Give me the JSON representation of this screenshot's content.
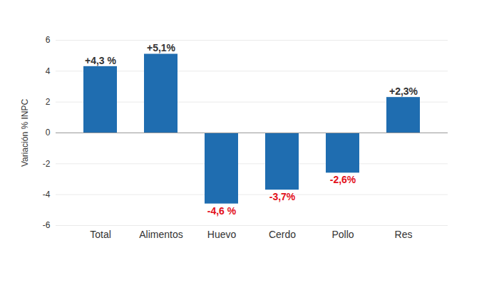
{
  "chart_data": {
    "type": "bar",
    "y_label": "Variación % INPC",
    "categories": [
      "Total",
      "Alimentos",
      "Huevo",
      "Cerdo",
      "Pollo",
      "Res"
    ],
    "values": [
      4.3,
      5.1,
      -4.6,
      -3.7,
      -2.6,
      2.3
    ],
    "value_labels": [
      "+4,3 %",
      "+5,1%",
      "-4,6 %",
      "-3,7%",
      "-2,6%",
      "+2,3%"
    ],
    "color": "#1f6db0",
    "ylim": [
      -6,
      6
    ],
    "yticks": [
      -6,
      -4,
      -2,
      0,
      2,
      4,
      6
    ],
    "grid": true,
    "data_labels": true
  }
}
